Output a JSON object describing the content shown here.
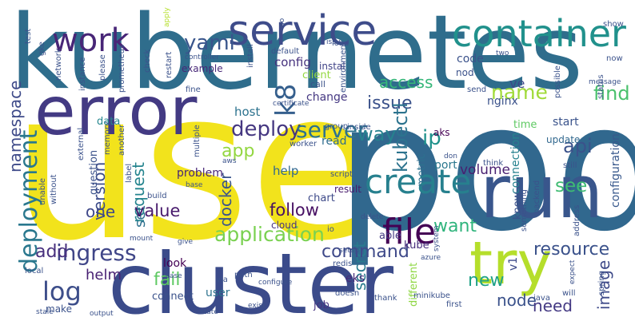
{
  "words": [
    {
      "text": "use",
      "color": "#f2e31c"
    },
    {
      "text": "pod",
      "color": "#31688e"
    },
    {
      "text": "kubernetes",
      "color": "#2f6d8c"
    },
    {
      "text": "cluster",
      "color": "#3b4b8a"
    },
    {
      "text": "error",
      "color": "#433a83"
    },
    {
      "text": "run",
      "color": "#39568c"
    },
    {
      "text": "try",
      "color": "#b5de2b"
    },
    {
      "text": "service",
      "color": "#3e4c8a"
    },
    {
      "text": "container",
      "color": "#21918c"
    },
    {
      "text": "create",
      "color": "#27808e"
    },
    {
      "text": "work",
      "color": "#482677"
    },
    {
      "text": "file",
      "color": "#440154"
    },
    {
      "text": "deployment",
      "color": "#2a788e"
    },
    {
      "text": "application",
      "color": "#7ad151"
    },
    {
      "text": "log",
      "color": "#3d4e8a"
    },
    {
      "text": "k8",
      "color": "#355f8d"
    },
    {
      "text": "yaml",
      "color": "#39558c"
    },
    {
      "text": "ingress",
      "color": "#404688"
    },
    {
      "text": "deploy",
      "color": "#453781"
    },
    {
      "text": "server",
      "color": "#2c728e"
    },
    {
      "text": "access",
      "color": "#35b779"
    },
    {
      "text": "issue",
      "color": "#3b528b"
    },
    {
      "text": "find",
      "color": "#4ac16d"
    },
    {
      "text": "name",
      "color": "#a0da39"
    },
    {
      "text": "namespace",
      "color": "#3e4a89"
    },
    {
      "text": "kubectl",
      "color": "#2c738e"
    },
    {
      "text": "way",
      "color": "#26828e"
    },
    {
      "text": "ip",
      "color": "#20928c"
    },
    {
      "text": "api",
      "color": "#3b528b"
    },
    {
      "text": "app",
      "color": "#93d741"
    },
    {
      "text": "request",
      "color": "#25848e"
    },
    {
      "text": "version",
      "color": "#3d4d8a"
    },
    {
      "text": "see",
      "color": "#3fbc73"
    },
    {
      "text": "want",
      "color": "#2fb47c"
    },
    {
      "text": "set",
      "color": "#2d708e"
    },
    {
      "text": "one",
      "color": "#3f4889"
    },
    {
      "text": "value",
      "color": "#481a6c"
    },
    {
      "text": "follow",
      "color": "#471063"
    },
    {
      "text": "docker",
      "color": "#3a548c"
    },
    {
      "text": "secret",
      "color": "#297b8e"
    },
    {
      "text": "resource",
      "color": "#3b528b"
    },
    {
      "text": "command",
      "color": "#3e4989"
    },
    {
      "text": "add",
      "color": "#472f7d"
    },
    {
      "text": "helm",
      "color": "#482173"
    },
    {
      "text": "fail",
      "color": "#5ec962"
    },
    {
      "text": "new",
      "color": "#1fa187"
    },
    {
      "text": "node",
      "color": "#3b528b"
    },
    {
      "text": "need",
      "color": "#443983"
    },
    {
      "text": "image",
      "color": "#3e4a89"
    },
    {
      "text": "volume",
      "color": "#481f70"
    },
    {
      "text": "code",
      "color": "#3b528b"
    },
    {
      "text": "config",
      "color": "#46327e"
    },
    {
      "text": "nginx",
      "color": "#3b528b"
    },
    {
      "text": "ve",
      "color": "#3e4989"
    },
    {
      "text": "host",
      "color": "#2c728e"
    },
    {
      "text": "change",
      "color": "#453882"
    },
    {
      "text": "client",
      "color": "#94d840"
    },
    {
      "text": "data",
      "color": "#24868e"
    },
    {
      "text": "port",
      "color": "#2a778e"
    },
    {
      "text": "start",
      "color": "#3a538b"
    },
    {
      "text": "time",
      "color": "#5ec962"
    },
    {
      "text": "aks",
      "color": "#440154"
    },
    {
      "text": "update",
      "color": "#31688e"
    },
    {
      "text": "configuration",
      "color": "#38588c"
    },
    {
      "text": "problem",
      "color": "#482677"
    },
    {
      "text": "help",
      "color": "#31688e"
    },
    {
      "text": "question",
      "color": "#3b528b"
    },
    {
      "text": "metric",
      "color": "#2d718e"
    },
    {
      "text": "chart",
      "color": "#3e4a89"
    },
    {
      "text": "read",
      "color": "#2f6c8e"
    },
    {
      "text": "cloud",
      "color": "#46337f"
    },
    {
      "text": "result",
      "color": "#481b6d"
    },
    {
      "text": "connection",
      "color": "#26828e"
    },
    {
      "text": "kube",
      "color": "#472e7c"
    },
    {
      "text": "know",
      "color": "#3b528b"
    },
    {
      "text": "able",
      "color": "#443983"
    },
    {
      "text": "eks",
      "color": "#472c7a"
    },
    {
      "text": "look",
      "color": "#440154"
    },
    {
      "text": "connect",
      "color": "#3b528b"
    },
    {
      "text": "user",
      "color": "#2c728e"
    },
    {
      "text": "job",
      "color": "#463480"
    },
    {
      "text": "make",
      "color": "#3b528b"
    },
    {
      "text": "different",
      "color": "#8fd744"
    },
    {
      "text": "v1",
      "color": "#3e4a89"
    },
    {
      "text": "instal",
      "color": "#404387"
    },
    {
      "text": "example",
      "color": "#482878"
    },
    {
      "text": "call",
      "color": "#3b528b"
    },
    {
      "text": "nod",
      "color": "#3b528b"
    },
    {
      "text": "test",
      "color": "#3b528b"
    },
    {
      "text": "gke",
      "color": "#3b528b"
    },
    {
      "text": "network",
      "color": "#3b528b"
    },
    {
      "text": "instance",
      "color": "#3b528b"
    },
    {
      "text": "please",
      "color": "#3b528b"
    },
    {
      "text": "prometheus",
      "color": "#3b528b"
    },
    {
      "text": "check",
      "color": "#3b528b"
    },
    {
      "text": "restart",
      "color": "#3b528b"
    },
    {
      "text": "fine",
      "color": "#3b528b"
    },
    {
      "text": "another",
      "color": "#3b528b"
    },
    {
      "text": "install",
      "color": "#3b528b"
    },
    {
      "text": "default",
      "color": "#3b528b"
    },
    {
      "text": "controller",
      "color": "#3b528b"
    },
    {
      "text": "apply",
      "color": "#b5de2b"
    },
    {
      "text": "go",
      "color": "#3b528b"
    },
    {
      "text": "load",
      "color": "#3b528b"
    },
    {
      "text": "two",
      "color": "#3b528b"
    },
    {
      "text": "environment",
      "color": "#3b528b"
    },
    {
      "text": "show",
      "color": "#3b528b"
    },
    {
      "text": "now",
      "color": "#3b528b"
    },
    {
      "text": "message",
      "color": "#3b528b"
    },
    {
      "text": "possible",
      "color": "#3b528b"
    },
    {
      "text": "status",
      "color": "#3b528b"
    },
    {
      "text": "send",
      "color": "#3b528b"
    },
    {
      "text": "memory",
      "color": "#3b528b"
    },
    {
      "text": "external",
      "color": "#3b528b"
    },
    {
      "text": "multiple",
      "color": "#3b528b"
    },
    {
      "text": "worker",
      "color": "#3b528b"
    },
    {
      "text": "group",
      "color": "#3b528b"
    },
    {
      "text": "inside",
      "color": "#3b528b"
    },
    {
      "text": "certificate",
      "color": "#3b528b"
    },
    {
      "text": "aws",
      "color": "#3b528b"
    },
    {
      "text": "unable",
      "color": "#3b528b"
    },
    {
      "text": "without",
      "color": "#3b528b"
    },
    {
      "text": "label",
      "color": "#3b528b"
    },
    {
      "text": "base",
      "color": "#3b528b"
    },
    {
      "text": "don",
      "color": "#3b528b"
    },
    {
      "text": "think",
      "color": "#3b528b"
    },
    {
      "text": "still",
      "color": "#3b528b"
    },
    {
      "text": "script",
      "color": "#3b528b"
    },
    {
      "text": "build",
      "color": "#3b528b"
    },
    {
      "text": "delete",
      "color": "#3b528b"
    },
    {
      "text": "something",
      "color": "#3b528b"
    },
    {
      "text": "backend",
      "color": "#3b528b"
    },
    {
      "text": "address",
      "color": "#3b528b"
    },
    {
      "text": "spring",
      "color": "#3b528b"
    },
    {
      "text": "expect",
      "color": "#3b528b"
    },
    {
      "text": "java",
      "color": "#3b528b"
    },
    {
      "text": "will",
      "color": "#3b528b"
    },
    {
      "text": "azure",
      "color": "#3b528b"
    },
    {
      "text": "system",
      "color": "#3b528b"
    },
    {
      "text": "setup",
      "color": "#3b528b"
    },
    {
      "text": "redis",
      "color": "#3b528b"
    },
    {
      "text": "io",
      "color": "#3b528b"
    },
    {
      "text": "mount",
      "color": "#3b528b"
    },
    {
      "text": "give",
      "color": "#3b528b"
    },
    {
      "text": "case",
      "color": "#3b528b"
    },
    {
      "text": "via",
      "color": "#3b528b"
    },
    {
      "text": "path",
      "color": "#3b528b"
    },
    {
      "text": "state",
      "color": "#3b528b"
    },
    {
      "text": "exist",
      "color": "#3b528b"
    },
    {
      "text": "configure",
      "color": "#3b528b"
    },
    {
      "text": "doesn",
      "color": "#3b528b"
    },
    {
      "text": "thank",
      "color": "#3b528b"
    },
    {
      "text": "minikube",
      "color": "#3b528b"
    },
    {
      "text": "first",
      "color": "#3b528b"
    },
    {
      "text": "local",
      "color": "#3b528b"
    },
    {
      "text": "stale",
      "color": "#3b528b"
    },
    {
      "text": "output",
      "color": "#3b528b"
    },
    {
      "text": "issu",
      "color": "#3b528b"
    }
  ]
}
